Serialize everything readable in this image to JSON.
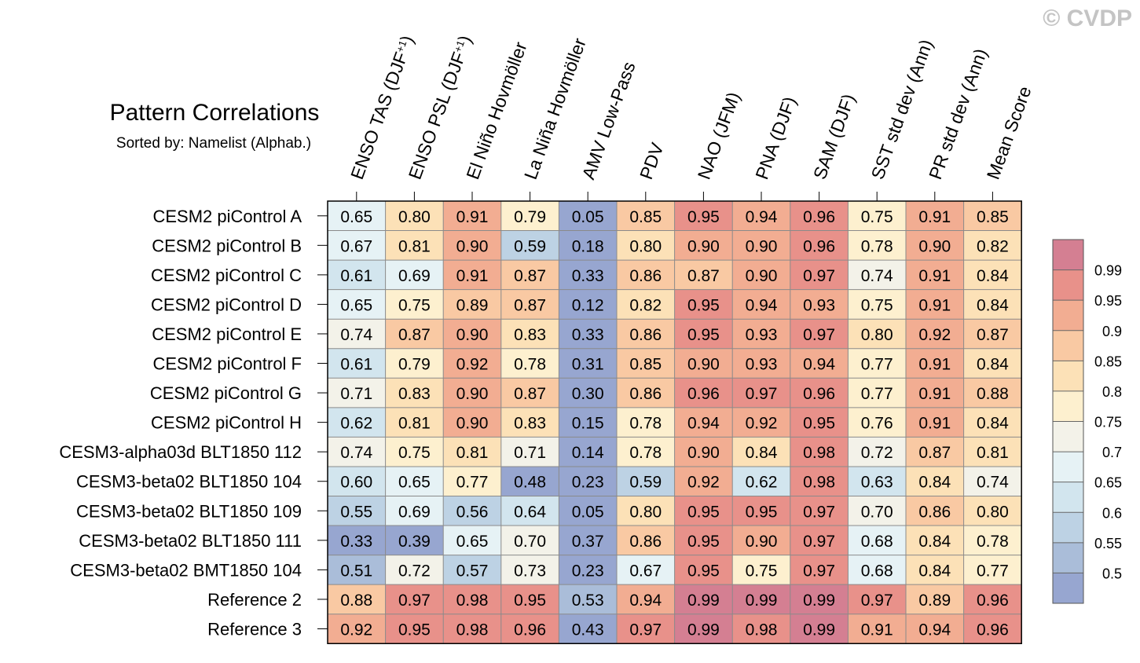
{
  "watermark": "© CVDP",
  "chart_data": {
    "type": "heatmap",
    "title": "Pattern Correlations",
    "subtitle": "Sorted by: Namelist (Alphab.)",
    "columns": [
      {
        "parts": [
          {
            "t": "ENSO TAS (DJF"
          },
          {
            "t": "+1",
            "sup": true
          },
          {
            "t": ")"
          }
        ]
      },
      {
        "parts": [
          {
            "t": "ENSO PSL (DJF"
          },
          {
            "t": "+1",
            "sup": true
          },
          {
            "t": ")"
          }
        ]
      },
      {
        "parts": [
          {
            "t": "El Niño Hovmöller"
          }
        ]
      },
      {
        "parts": [
          {
            "t": "La Niña Hovmöller"
          }
        ]
      },
      {
        "parts": [
          {
            "t": "AMV Low-Pass"
          }
        ]
      },
      {
        "parts": [
          {
            "t": "PDV"
          }
        ]
      },
      {
        "parts": [
          {
            "t": "NAO (JFM)"
          }
        ]
      },
      {
        "parts": [
          {
            "t": "PNA (DJF)"
          }
        ]
      },
      {
        "parts": [
          {
            "t": "SAM (DJF)"
          }
        ]
      },
      {
        "parts": [
          {
            "t": "SST std dev (Ann)"
          }
        ]
      },
      {
        "parts": [
          {
            "t": "PR std dev (Ann)"
          }
        ]
      },
      {
        "parts": [
          {
            "t": "Mean Score"
          }
        ]
      }
    ],
    "rows": [
      "CESM2 piControl A",
      "CESM2 piControl B",
      "CESM2 piControl C",
      "CESM2 piControl D",
      "CESM2 piControl E",
      "CESM2 piControl F",
      "CESM2 piControl G",
      "CESM2 piControl H",
      "CESM3-alpha03d BLT1850 112",
      "CESM3-beta02 BLT1850 104",
      "CESM3-beta02 BLT1850 109",
      "CESM3-beta02 BLT1850 111",
      "CESM3-beta02 BMT1850 104",
      "Reference 2",
      "Reference 3"
    ],
    "values": [
      [
        "0.65",
        "0.80",
        "0.91",
        "0.79",
        "0.05",
        "0.85",
        "0.95",
        "0.94",
        "0.96",
        "0.75",
        "0.91",
        "0.85"
      ],
      [
        "0.67",
        "0.81",
        "0.90",
        "0.59",
        "0.18",
        "0.80",
        "0.90",
        "0.90",
        "0.96",
        "0.78",
        "0.90",
        "0.82"
      ],
      [
        "0.61",
        "0.69",
        "0.91",
        "0.87",
        "0.33",
        "0.86",
        "0.87",
        "0.90",
        "0.97",
        "0.74",
        "0.91",
        "0.84"
      ],
      [
        "0.65",
        "0.75",
        "0.89",
        "0.87",
        "0.12",
        "0.82",
        "0.95",
        "0.94",
        "0.93",
        "0.75",
        "0.91",
        "0.84"
      ],
      [
        "0.74",
        "0.87",
        "0.90",
        "0.83",
        "0.33",
        "0.86",
        "0.95",
        "0.93",
        "0.97",
        "0.80",
        "0.92",
        "0.87"
      ],
      [
        "0.61",
        "0.79",
        "0.92",
        "0.78",
        "0.31",
        "0.85",
        "0.90",
        "0.93",
        "0.94",
        "0.77",
        "0.91",
        "0.84"
      ],
      [
        "0.71",
        "0.83",
        "0.90",
        "0.87",
        "0.30",
        "0.86",
        "0.96",
        "0.97",
        "0.96",
        "0.77",
        "0.91",
        "0.88"
      ],
      [
        "0.62",
        "0.81",
        "0.90",
        "0.83",
        "0.15",
        "0.78",
        "0.94",
        "0.92",
        "0.95",
        "0.76",
        "0.91",
        "0.84"
      ],
      [
        "0.74",
        "0.75",
        "0.81",
        "0.71",
        "0.14",
        "0.78",
        "0.90",
        "0.84",
        "0.98",
        "0.72",
        "0.87",
        "0.81"
      ],
      [
        "0.60",
        "0.65",
        "0.77",
        "0.48",
        "0.23",
        "0.59",
        "0.92",
        "0.62",
        "0.98",
        "0.63",
        "0.84",
        "0.74"
      ],
      [
        "0.55",
        "0.69",
        "0.56",
        "0.64",
        "0.05",
        "0.80",
        "0.95",
        "0.95",
        "0.97",
        "0.70",
        "0.86",
        "0.80"
      ],
      [
        "0.33",
        "0.39",
        "0.65",
        "0.70",
        "0.37",
        "0.86",
        "0.95",
        "0.90",
        "0.97",
        "0.68",
        "0.84",
        "0.78"
      ],
      [
        "0.51",
        "0.72",
        "0.57",
        "0.73",
        "0.23",
        "0.67",
        "0.95",
        "0.75",
        "0.97",
        "0.68",
        "0.84",
        "0.77"
      ],
      [
        "0.88",
        "0.97",
        "0.98",
        "0.95",
        "0.53",
        "0.94",
        "0.99",
        "0.99",
        "0.99",
        "0.97",
        "0.89",
        "0.96"
      ],
      [
        "0.92",
        "0.95",
        "0.98",
        "0.96",
        "0.43",
        "0.97",
        "0.99",
        "0.98",
        "0.99",
        "0.91",
        "0.94",
        "0.96"
      ]
    ],
    "colorbar": {
      "levels": [
        0.5,
        0.55,
        0.6,
        0.65,
        0.7,
        0.75,
        0.8,
        0.85,
        0.9,
        0.95,
        0.99
      ],
      "labels": [
        "0.5",
        "0.55",
        "0.6",
        "0.65",
        "0.7",
        "0.75",
        "0.8",
        "0.85",
        "0.9",
        "0.95",
        "0.99"
      ],
      "colors": [
        "#97a6d0",
        "#aabdd9",
        "#bdd2e4",
        "#d2e5ee",
        "#e6f2f5",
        "#f3f2e9",
        "#fdf0cf",
        "#fce1b7",
        "#f9c9a3",
        "#f2ad92",
        "#e8918a",
        "#d47f92"
      ]
    }
  }
}
